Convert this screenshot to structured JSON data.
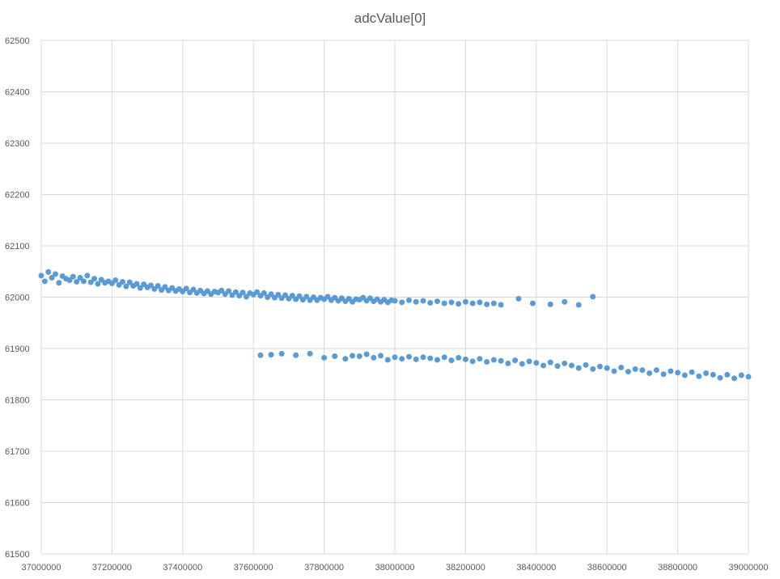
{
  "chart_data": {
    "type": "scatter",
    "title": "adcValue[0]",
    "xlabel": "",
    "ylabel": "",
    "xlim": [
      37000000,
      39000000
    ],
    "ylim": [
      61500,
      62500
    ],
    "x_ticks": [
      "37000000",
      "37200000",
      "37400000",
      "37600000",
      "37800000",
      "38000000",
      "38200000",
      "38400000",
      "38600000",
      "38800000",
      "39000000"
    ],
    "y_ticks": [
      "62500",
      "62400",
      "62300",
      "62200",
      "62100",
      "62000",
      "61900",
      "61800",
      "61700",
      "61600",
      "61500"
    ],
    "grid": true,
    "legend": "none",
    "marker_color": "#5B9BD5",
    "gridline_color": "#D9D9D9",
    "series": [
      {
        "points": [
          [
            37000000,
            62042
          ],
          [
            37010000,
            62031
          ],
          [
            37020000,
            62049
          ],
          [
            37030000,
            62038
          ],
          [
            37040000,
            62045
          ],
          [
            37050000,
            62028
          ],
          [
            37060000,
            62041
          ],
          [
            37070000,
            62036
          ],
          [
            37080000,
            62033
          ],
          [
            37090000,
            62040
          ],
          [
            37100000,
            62030
          ],
          [
            37110000,
            62038
          ],
          [
            37120000,
            62031
          ],
          [
            37130000,
            62042
          ],
          [
            37140000,
            62029
          ],
          [
            37150000,
            62036
          ],
          [
            37160000,
            62026
          ],
          [
            37170000,
            62034
          ],
          [
            37180000,
            62028
          ],
          [
            37190000,
            62031
          ],
          [
            37200000,
            62027
          ],
          [
            37210000,
            62033
          ],
          [
            37220000,
            62024
          ],
          [
            37230000,
            62030
          ],
          [
            37240000,
            62021
          ],
          [
            37250000,
            62029
          ],
          [
            37260000,
            62022
          ],
          [
            37270000,
            62026
          ],
          [
            37280000,
            62018
          ],
          [
            37290000,
            62025
          ],
          [
            37300000,
            62019
          ],
          [
            37310000,
            62023
          ],
          [
            37320000,
            62016
          ],
          [
            37330000,
            62022
          ],
          [
            37340000,
            62014
          ],
          [
            37350000,
            62020
          ],
          [
            37360000,
            62013
          ],
          [
            37370000,
            62018
          ],
          [
            37380000,
            62012
          ],
          [
            37390000,
            62016
          ],
          [
            37400000,
            62011
          ],
          [
            37410000,
            62017
          ],
          [
            37420000,
            62009
          ],
          [
            37430000,
            62015
          ],
          [
            37440000,
            62008
          ],
          [
            37450000,
            62013
          ],
          [
            37460000,
            62007
          ],
          [
            37470000,
            62012
          ],
          [
            37480000,
            62006
          ],
          [
            37490000,
            62011
          ],
          [
            37500000,
            62009
          ],
          [
            37510000,
            62013
          ],
          [
            37520000,
            62006
          ],
          [
            37530000,
            62012
          ],
          [
            37540000,
            62004
          ],
          [
            37550000,
            62010
          ],
          [
            37560000,
            62003
          ],
          [
            37570000,
            62009
          ],
          [
            37580000,
            62001
          ],
          [
            37590000,
            62008
          ],
          [
            37600000,
            62005
          ],
          [
            37610000,
            62010
          ],
          [
            37620000,
            62003
          ],
          [
            37630000,
            62008
          ],
          [
            37640000,
            62000
          ],
          [
            37650000,
            62006
          ],
          [
            37660000,
            61999
          ],
          [
            37670000,
            62005
          ],
          [
            37680000,
            61998
          ],
          [
            37690000,
            62004
          ],
          [
            37700000,
            61997
          ],
          [
            37710000,
            62003
          ],
          [
            37720000,
            61996
          ],
          [
            37730000,
            62002
          ],
          [
            37740000,
            61995
          ],
          [
            37750000,
            62001
          ],
          [
            37760000,
            61994
          ],
          [
            37770000,
            62000
          ],
          [
            37780000,
            61994
          ],
          [
            37790000,
            61999
          ],
          [
            37800000,
            61996
          ],
          [
            37810000,
            62001
          ],
          [
            37820000,
            61994
          ],
          [
            37830000,
            61999
          ],
          [
            37840000,
            61993
          ],
          [
            37850000,
            61998
          ],
          [
            37860000,
            61992
          ],
          [
            37870000,
            61997
          ],
          [
            37880000,
            61991
          ],
          [
            37890000,
            61996
          ],
          [
            37900000,
            61995
          ],
          [
            37910000,
            61999
          ],
          [
            37920000,
            61993
          ],
          [
            37930000,
            61998
          ],
          [
            37940000,
            61992
          ],
          [
            37950000,
            61996
          ],
          [
            37960000,
            61991
          ],
          [
            37970000,
            61995
          ],
          [
            37980000,
            61990
          ],
          [
            37990000,
            61994
          ],
          [
            38000000,
            61993
          ],
          [
            38020000,
            61990
          ],
          [
            38040000,
            61994
          ],
          [
            38060000,
            61991
          ],
          [
            38080000,
            61993
          ],
          [
            38100000,
            61989
          ],
          [
            38120000,
            61992
          ],
          [
            38140000,
            61988
          ],
          [
            38160000,
            61990
          ],
          [
            38180000,
            61987
          ],
          [
            38200000,
            61991
          ],
          [
            38220000,
            61988
          ],
          [
            38240000,
            61990
          ],
          [
            38260000,
            61986
          ],
          [
            38280000,
            61988
          ],
          [
            38300000,
            61985
          ],
          [
            38350000,
            61997
          ],
          [
            38390000,
            61988
          ],
          [
            38440000,
            61986
          ],
          [
            38480000,
            61991
          ],
          [
            38520000,
            61985
          ],
          [
            38560000,
            62001
          ],
          [
            37620000,
            61887
          ],
          [
            37650000,
            61888
          ],
          [
            37680000,
            61890
          ],
          [
            37720000,
            61887
          ],
          [
            37760000,
            61890
          ],
          [
            37800000,
            61882
          ],
          [
            37830000,
            61885
          ],
          [
            37860000,
            61880
          ],
          [
            37880000,
            61886
          ],
          [
            37900000,
            61885
          ],
          [
            37920000,
            61889
          ],
          [
            37940000,
            61882
          ],
          [
            37960000,
            61886
          ],
          [
            37980000,
            61878
          ],
          [
            38000000,
            61883
          ],
          [
            38020000,
            61880
          ],
          [
            38040000,
            61884
          ],
          [
            38060000,
            61879
          ],
          [
            38080000,
            61883
          ],
          [
            38100000,
            61881
          ],
          [
            38120000,
            61878
          ],
          [
            38140000,
            61883
          ],
          [
            38160000,
            61877
          ],
          [
            38180000,
            61882
          ],
          [
            38200000,
            61879
          ],
          [
            38220000,
            61875
          ],
          [
            38240000,
            61880
          ],
          [
            38260000,
            61874
          ],
          [
            38280000,
            61878
          ],
          [
            38300000,
            61876
          ],
          [
            38320000,
            61871
          ],
          [
            38340000,
            61877
          ],
          [
            38360000,
            61870
          ],
          [
            38380000,
            61875
          ],
          [
            38400000,
            61872
          ],
          [
            38420000,
            61867
          ],
          [
            38440000,
            61873
          ],
          [
            38460000,
            61866
          ],
          [
            38480000,
            61871
          ],
          [
            38500000,
            61867
          ],
          [
            38520000,
            61862
          ],
          [
            38540000,
            61868
          ],
          [
            38560000,
            61860
          ],
          [
            38580000,
            61865
          ],
          [
            38600000,
            61862
          ],
          [
            38620000,
            61856
          ],
          [
            38640000,
            61863
          ],
          [
            38660000,
            61855
          ],
          [
            38680000,
            61860
          ],
          [
            38700000,
            61858
          ],
          [
            38720000,
            61852
          ],
          [
            38740000,
            61858
          ],
          [
            38760000,
            61850
          ],
          [
            38780000,
            61856
          ],
          [
            38800000,
            61853
          ],
          [
            38820000,
            61848
          ],
          [
            38840000,
            61854
          ],
          [
            38860000,
            61846
          ],
          [
            38880000,
            61852
          ],
          [
            38900000,
            61849
          ],
          [
            38920000,
            61843
          ],
          [
            38940000,
            61849
          ],
          [
            38960000,
            61842
          ],
          [
            38980000,
            61848
          ],
          [
            39000000,
            61845
          ]
        ]
      }
    ]
  }
}
